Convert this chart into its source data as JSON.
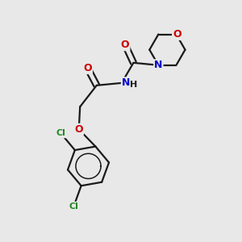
{
  "background_color": "#e8e8e8",
  "bond_color": "#1a1a1a",
  "atom_colors": {
    "O": "#cc0000",
    "N": "#0000cc",
    "Cl": "#228822",
    "C": "#1a1a1a"
  },
  "figsize": [
    3.0,
    3.0
  ],
  "dpi": 100
}
